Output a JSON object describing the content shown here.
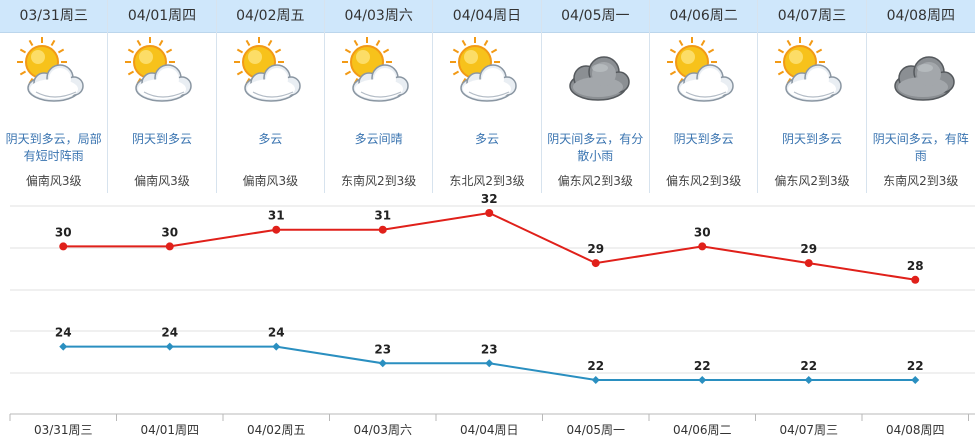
{
  "forecast": {
    "days": [
      {
        "date": "03/31周三",
        "icon": "sun-cloud-icon",
        "desc": "阴天到多云，局部有短时阵雨",
        "wind": "偏南风3级"
      },
      {
        "date": "04/01周四",
        "icon": "sun-cloud-icon",
        "desc": "阴天到多云",
        "wind": "偏南风3级"
      },
      {
        "date": "04/02周五",
        "icon": "sun-cloud-icon",
        "desc": "多云",
        "wind": "偏南风3级"
      },
      {
        "date": "04/03周六",
        "icon": "sun-cloud-icon",
        "desc": "多云间晴",
        "wind": "东南风2到3级"
      },
      {
        "date": "04/04周日",
        "icon": "sun-cloud-icon",
        "desc": "多云",
        "wind": "东北风2到3级"
      },
      {
        "date": "04/05周一",
        "icon": "dark-cloud-icon",
        "desc": "阴天间多云，有分散小雨",
        "wind": "偏东风2到3级"
      },
      {
        "date": "04/06周二",
        "icon": "sun-cloud-icon",
        "desc": "阴天到多云",
        "wind": "偏东风2到3级"
      },
      {
        "date": "04/07周三",
        "icon": "sun-cloud-icon",
        "desc": "阴天到多云",
        "wind": "偏东风2到3级"
      },
      {
        "date": "04/08周四",
        "icon": "dark-cloud-icon",
        "desc": "阴天间多云，有阵雨",
        "wind": "东南风2到3级"
      }
    ]
  },
  "chart_data": {
    "type": "line",
    "categories": [
      "03/31周三",
      "04/01周四",
      "04/02周五",
      "04/03周六",
      "04/04周日",
      "04/05周一",
      "04/06周二",
      "04/07周三",
      "04/08周四"
    ],
    "series": [
      {
        "values": [
          30,
          30,
          31,
          31,
          32,
          29,
          30,
          29,
          28
        ],
        "color": "#e0201a"
      },
      {
        "values": [
          24,
          24,
          24,
          23,
          23,
          22,
          22,
          22,
          22
        ],
        "color": "#2a8fc0"
      }
    ],
    "grid": true,
    "legend": "none"
  }
}
